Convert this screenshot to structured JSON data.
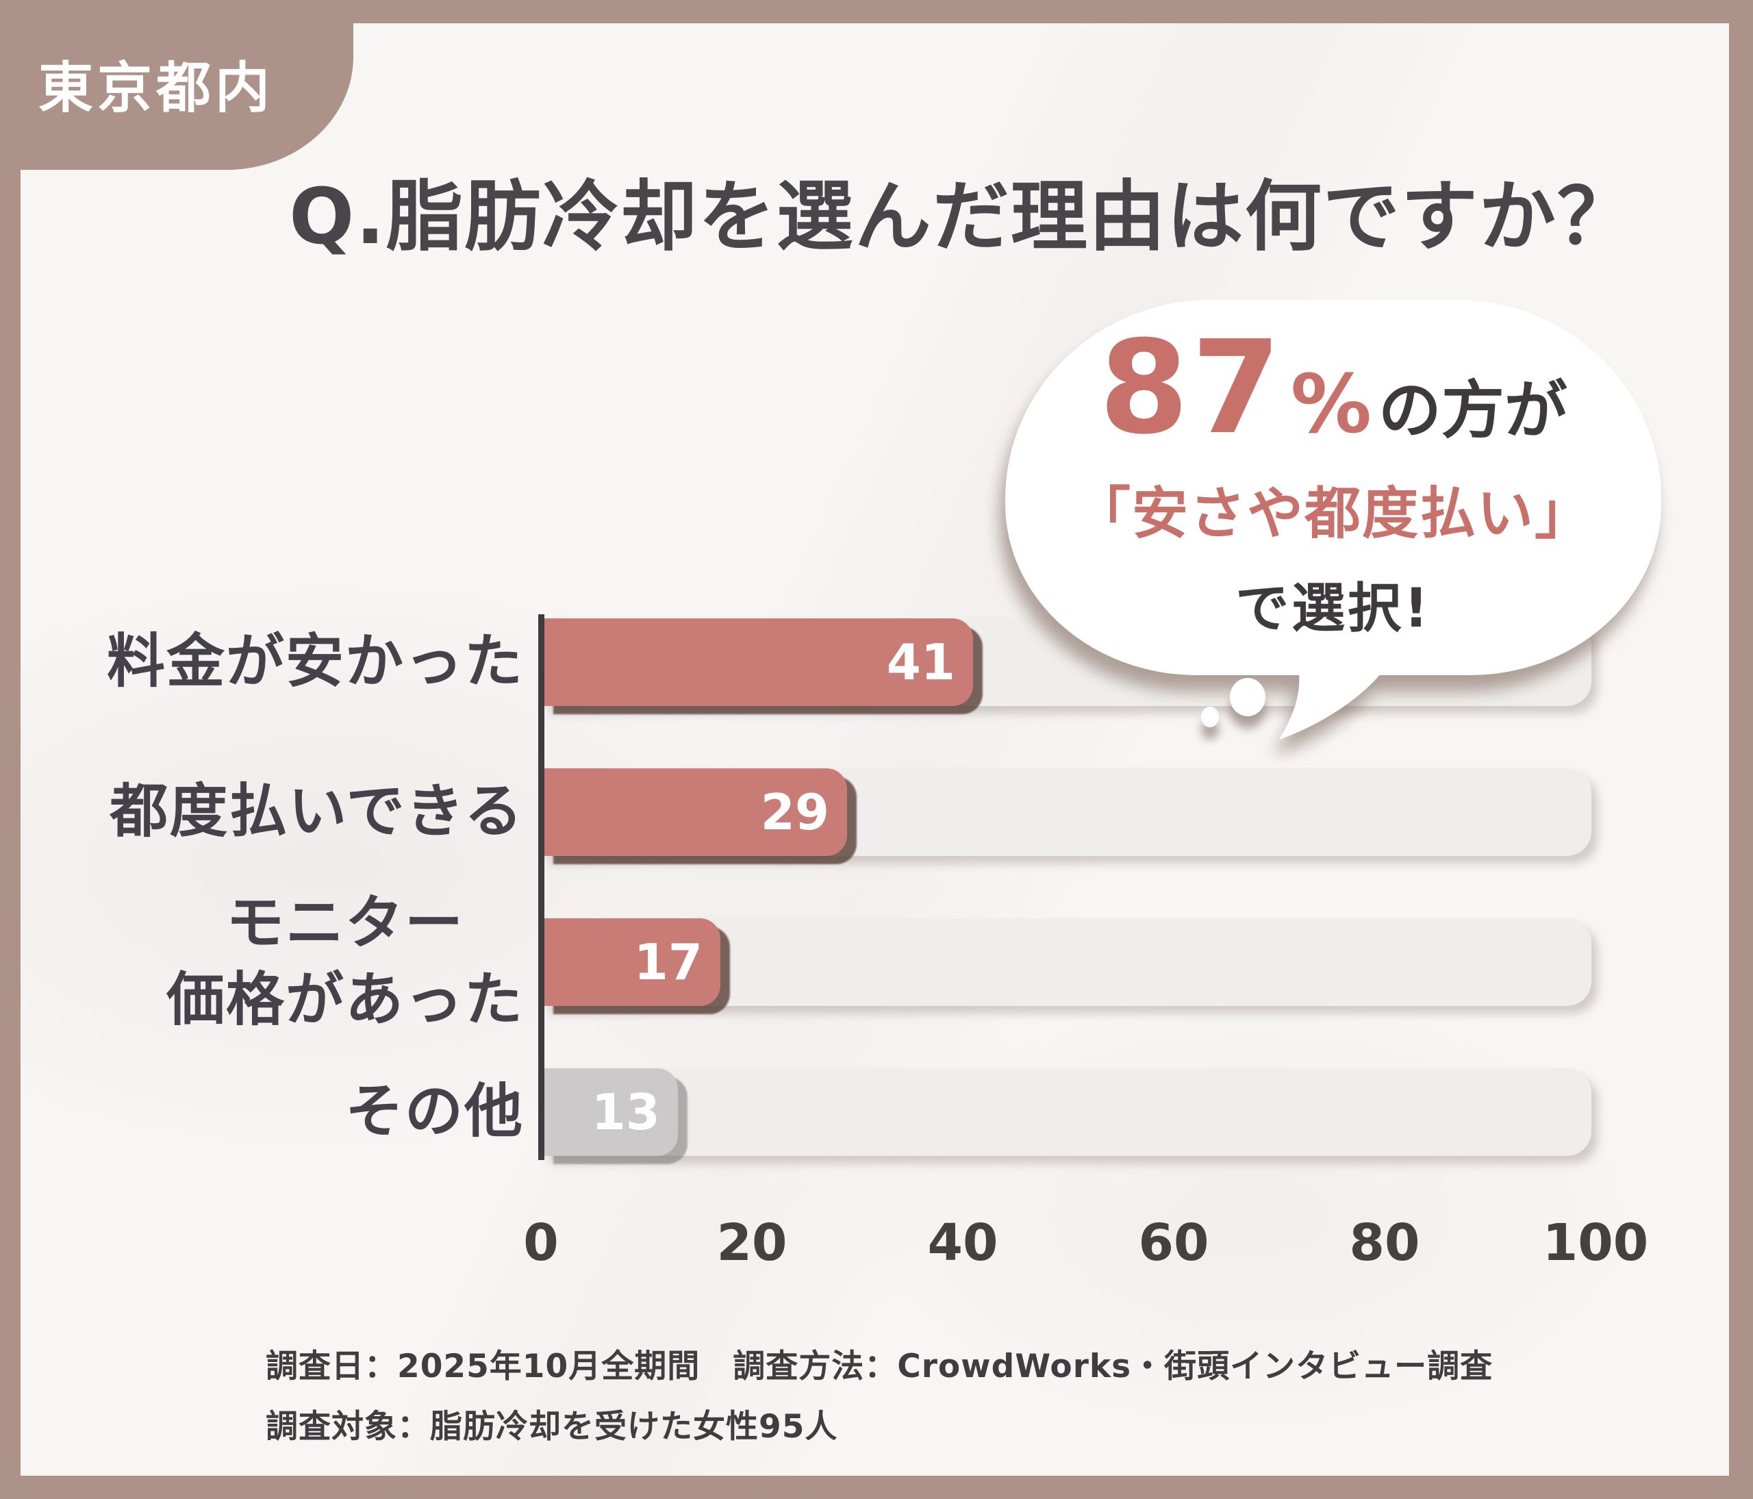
{
  "badge": {
    "label": "東京都内"
  },
  "title": "Q.脂肪冷却を選んだ理由は何ですか？",
  "bubble": {
    "stat": "87",
    "stat_unit": "%",
    "stat_suffix": "の方が",
    "quote": "「安さや都度払い」",
    "conclusion": "で選択!"
  },
  "chart_data": {
    "type": "bar",
    "orientation": "horizontal",
    "title": "Q.脂肪冷却を選んだ理由は何ですか？",
    "categories": [
      "料金が安かった",
      "都度払いできる",
      "モニター\n価格があった",
      "その他"
    ],
    "values": [
      41,
      29,
      17,
      13
    ],
    "emphasis": [
      true,
      true,
      true,
      false
    ],
    "bar_colors": [
      "#c97c75",
      "#c97c75",
      "#c97c75",
      "#cbc9c9"
    ],
    "xlim": [
      0,
      100
    ],
    "x_ticks": [
      0,
      20,
      40,
      60,
      80,
      100
    ],
    "grid": false,
    "legend": false,
    "annotation": "87%の方が「安さや都度払い」で選択!"
  },
  "footnotes": {
    "line1": "調査日：2025年10月全期間　調査方法：CrowdWorks・街頭インタビュー調査",
    "line2": "調査対象：脂肪冷却を受けた女性95人"
  },
  "colors": {
    "frame": "#ac9289",
    "panel": "#f8f6f5",
    "bar_accent": "#c97c75",
    "bar_muted": "#cbc9c9",
    "track": "#f0eeec",
    "axis": "#3f3b3e",
    "text_dark": "#45414a",
    "accent_text": "#c8706a",
    "value_text": "#ffffff"
  }
}
